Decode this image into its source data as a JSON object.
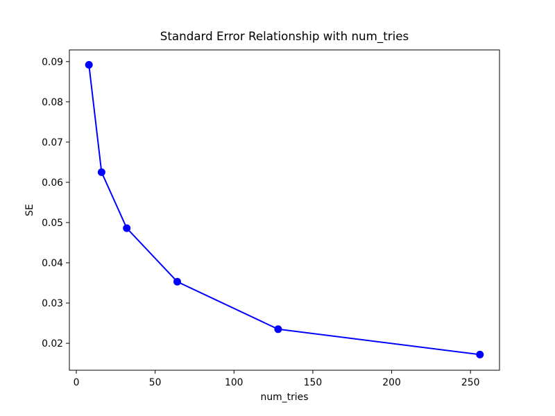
{
  "chart_data": {
    "type": "line",
    "title": "Standard Error Relationship with num_tries",
    "xlabel": "num_tries",
    "ylabel": "SE",
    "x": [
      8,
      16,
      32,
      64,
      128,
      256
    ],
    "series": [
      {
        "name": "SE",
        "values": [
          0.0892,
          0.0625,
          0.0486,
          0.0353,
          0.0235,
          0.0172
        ]
      }
    ],
    "xlim": [
      -4.4,
      268.4
    ],
    "ylim": [
      0.0133,
      0.0929
    ],
    "xticks": [
      0,
      50,
      100,
      150,
      200,
      250
    ],
    "xtick_labels": [
      "0",
      "50",
      "100",
      "150",
      "200",
      "250"
    ],
    "yticks": [
      0.02,
      0.03,
      0.04,
      0.05,
      0.06,
      0.07,
      0.08,
      0.09
    ],
    "ytick_labels": [
      "0.02",
      "0.03",
      "0.04",
      "0.05",
      "0.06",
      "0.07",
      "0.08",
      "0.09"
    ],
    "grid": false,
    "legend": "none",
    "line_color": "#0000ff",
    "marker": "circle",
    "marker_color": "#0000ff",
    "background_color": "#ffffff",
    "spine_color": "#000000"
  }
}
